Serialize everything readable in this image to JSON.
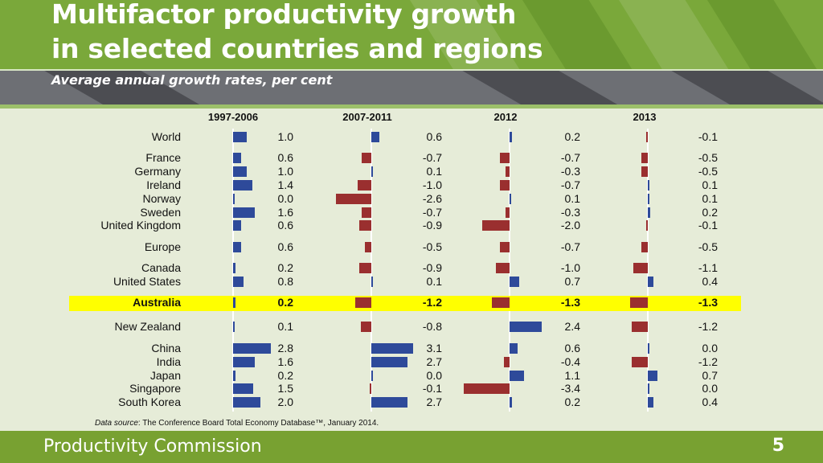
{
  "slide": {
    "title_line1": "Multifactor productivity growth",
    "title_line2": "in selected countries and regions",
    "subtitle": "Average annual growth rates, per cent",
    "source_label": "Data source",
    "source_text": ": The Conference Board Total Economy Database™, January 2014.",
    "footer_name": "Productivity Commission",
    "page_number": "5",
    "colors": {
      "positive": "#2e4a9a",
      "negative": "#9a2f2f",
      "highlight": "#ffff00",
      "green": "#7aa83a"
    }
  },
  "chart_data": {
    "type": "bar",
    "orientation": "horizontal",
    "title": "Multifactor productivity growth in selected countries and regions",
    "subtitle": "Average annual growth rates, per cent",
    "unit": "per cent",
    "periods": [
      "1997-2006",
      "2007-2011",
      "2012",
      "2013"
    ],
    "highlight": "Australia",
    "categories": [
      "World",
      "France",
      "Germany",
      "Ireland",
      "Norway",
      "Sweden",
      "United Kingdom",
      "Europe",
      "Canada",
      "United States",
      "Australia",
      "New Zealand",
      "China",
      "India",
      "Japan",
      "Singapore",
      "South Korea"
    ],
    "series": [
      {
        "name": "1997-2006",
        "values": [
          1.0,
          0.6,
          1.0,
          1.4,
          0.0,
          1.6,
          0.6,
          0.6,
          0.2,
          0.8,
          0.2,
          0.1,
          2.8,
          1.6,
          0.2,
          1.5,
          2.0
        ]
      },
      {
        "name": "2007-2011",
        "values": [
          0.6,
          -0.7,
          0.1,
          -1.0,
          -2.6,
          -0.7,
          -0.9,
          -0.5,
          -0.9,
          0.1,
          -1.2,
          -0.8,
          3.1,
          2.7,
          0.0,
          -0.1,
          2.7
        ]
      },
      {
        "name": "2012",
        "values": [
          0.2,
          -0.7,
          -0.3,
          -0.7,
          0.1,
          -0.3,
          -2.0,
          -0.7,
          -1.0,
          0.7,
          -1.3,
          2.4,
          0.6,
          -0.4,
          1.1,
          -3.4,
          0.2
        ]
      },
      {
        "name": "2013",
        "values": [
          -0.1,
          -0.5,
          -0.5,
          0.1,
          0.1,
          0.2,
          -0.1,
          -0.5,
          -1.1,
          0.4,
          -1.3,
          -1.2,
          0.0,
          -1.2,
          0.7,
          0.0,
          0.4
        ]
      }
    ]
  }
}
